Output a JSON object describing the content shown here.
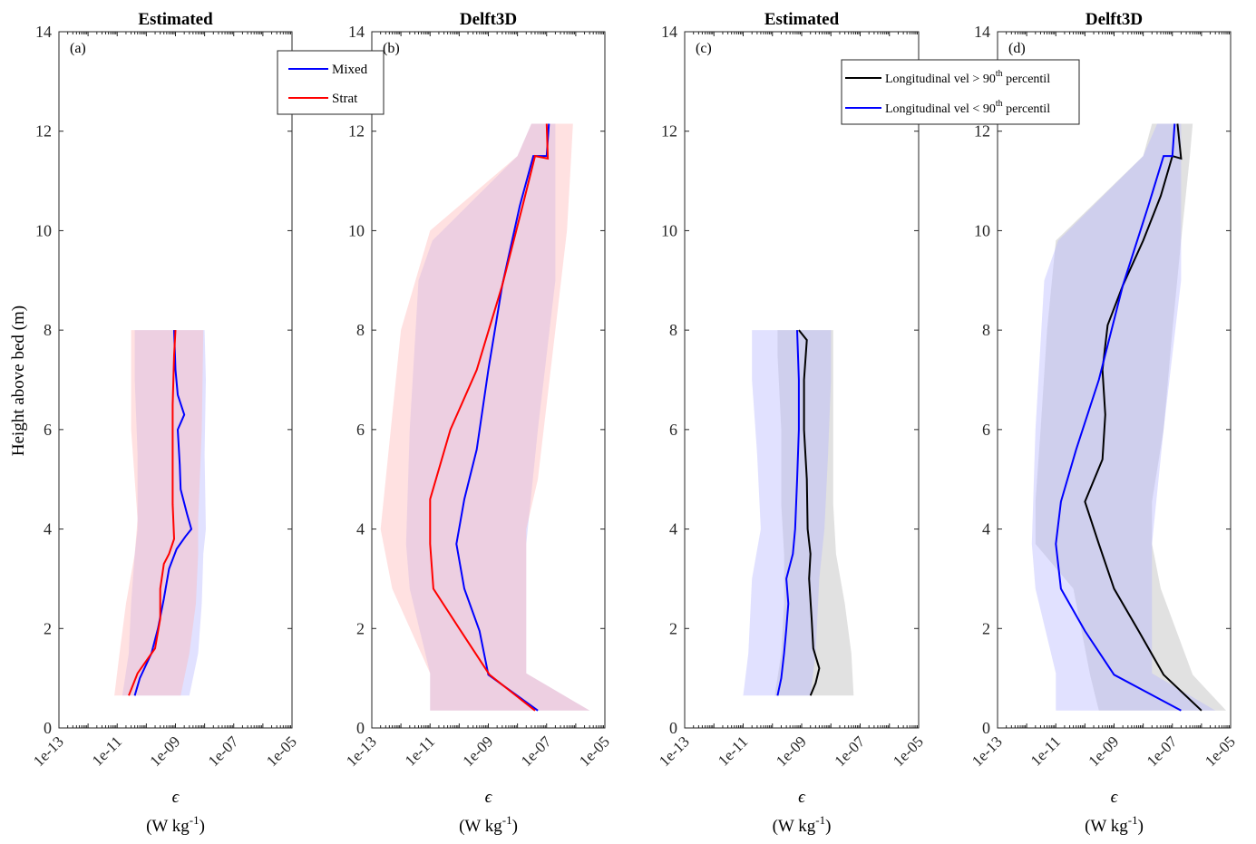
{
  "figure": {
    "ylabel": "Height above bed (m)",
    "xlabel_symbol": "ϵ",
    "xlabel_units": "(W kg",
    "xlabel_units_sup": "-1",
    "xlabel_units_close": ")"
  },
  "axes": {
    "ylim": [
      0,
      14
    ],
    "yticks": [
      0,
      2,
      4,
      6,
      8,
      10,
      12,
      14
    ],
    "xscale": "log",
    "xlim": [
      1e-13,
      1e-05
    ],
    "xticks": [
      "1e-13",
      "1e-11",
      "1e-09",
      "1e-07",
      "1e-05"
    ]
  },
  "legends": {
    "legend_ab": [
      "Mixed",
      "Strat"
    ],
    "legend_cd": [
      {
        "text": "Longitudinal vel > 90",
        "sup": "th",
        "after": " percentil"
      },
      {
        "text": "Longitudinal vel < 90",
        "sup": "th",
        "after": " percentil"
      }
    ]
  },
  "colors": {
    "mixed": "#0000ff",
    "strat": "#ff0000",
    "above": "#000000",
    "below": "#0000ff",
    "mixed_band": "#b4b4ff",
    "strat_band": "#ffb4b4",
    "above_band": "#b4b4b4",
    "below_band": "#b4b4ff"
  },
  "chart_data": [
    {
      "type": "line",
      "panel": "(a)",
      "title": "Estimated",
      "legend": "top-right, outside panel (a)",
      "series": [
        {
          "name": "Mixed",
          "color": "#0000ff",
          "points": [
            [
              4e-11,
              0.65
            ],
            [
              6e-11,
              1.0
            ],
            [
              1.5e-10,
              1.5
            ],
            [
              2.5e-10,
              2.0
            ],
            [
              4e-10,
              2.6
            ],
            [
              6e-10,
              3.2
            ],
            [
              1.1e-09,
              3.6
            ],
            [
              2.2e-09,
              3.85
            ],
            [
              3.5e-09,
              4.0
            ],
            [
              2.5e-09,
              4.3
            ],
            [
              1.5e-09,
              4.8
            ],
            [
              1.4e-09,
              5.3
            ],
            [
              1.2e-09,
              6.0
            ],
            [
              2e-09,
              6.3
            ],
            [
              1.2e-09,
              6.7
            ],
            [
              1e-09,
              7.2
            ],
            [
              9e-10,
              8.0
            ]
          ],
          "band": [
            [
              1.5e-11,
              3e-09,
              0.65
            ],
            [
              2.5e-11,
              6e-09,
              1.5
            ],
            [
              3e-11,
              8e-09,
              2.5
            ],
            [
              4e-11,
              9e-09,
              3.5
            ],
            [
              5e-11,
              1.1e-08,
              4.0
            ],
            [
              5e-11,
              1e-08,
              5.5
            ],
            [
              4e-11,
              1.1e-08,
              7.0
            ],
            [
              4e-11,
              1e-08,
              8.0
            ]
          ]
        },
        {
          "name": "Strat",
          "color": "#ff0000",
          "points": [
            [
              2.5e-11,
              0.65
            ],
            [
              5e-11,
              1.1
            ],
            [
              2e-10,
              1.6
            ],
            [
              3e-10,
              2.2
            ],
            [
              3e-10,
              2.8
            ],
            [
              4e-10,
              3.3
            ],
            [
              6e-10,
              3.5
            ],
            [
              9e-10,
              3.8
            ],
            [
              8e-10,
              4.5
            ],
            [
              8e-10,
              5.5
            ],
            [
              8e-10,
              6.5
            ],
            [
              9e-10,
              7.5
            ],
            [
              1e-09,
              8.0
            ]
          ],
          "band": [
            [
              8e-12,
              1.5e-09,
              0.65
            ],
            [
              1.2e-11,
              3e-09,
              1.5
            ],
            [
              2e-11,
              5e-09,
              2.5
            ],
            [
              4e-11,
              6e-09,
              3.5
            ],
            [
              5e-11,
              6e-09,
              4.2
            ],
            [
              3e-11,
              8e-09,
              6.0
            ],
            [
              3e-11,
              9e-09,
              8.0
            ]
          ]
        }
      ]
    },
    {
      "type": "line",
      "panel": "(b)",
      "title": "Delft3D",
      "series": [
        {
          "name": "Mixed",
          "color": "#0000ff",
          "points": [
            [
              5e-08,
              0.35
            ],
            [
              1e-09,
              1.07
            ],
            [
              5e-10,
              1.95
            ],
            [
              1.5e-10,
              2.8
            ],
            [
              8e-11,
              3.7
            ],
            [
              1.5e-10,
              4.6
            ],
            [
              4e-10,
              5.6
            ],
            [
              1e-09,
              7.2
            ],
            [
              3e-09,
              8.9
            ],
            [
              1.2e-08,
              10.5
            ],
            [
              3.5e-08,
              11.5
            ],
            [
              1e-07,
              11.5
            ],
            [
              1.2e-07,
              12.15
            ]
          ],
          "band": [
            [
              1e-11,
              3e-06,
              0.35
            ],
            [
              1e-11,
              2e-08,
              1.1
            ],
            [
              2e-12,
              2e-08,
              2.8
            ],
            [
              1.5e-12,
              2e-08,
              3.7
            ],
            [
              2e-12,
              5e-08,
              6.0
            ],
            [
              4e-12,
              2e-07,
              9.0
            ],
            [
              1.2e-11,
              2e-07,
              9.8
            ],
            [
              1e-08,
              2e-07,
              11.5
            ],
            [
              3e-08,
              2e-07,
              12.15
            ]
          ]
        },
        {
          "name": "Strat",
          "color": "#ff0000",
          "points": [
            [
              4e-08,
              0.35
            ],
            [
              1.1e-09,
              1.07
            ],
            [
              1e-10,
              2.0
            ],
            [
              1.3e-11,
              2.8
            ],
            [
              1e-11,
              3.7
            ],
            [
              1e-11,
              4.6
            ],
            [
              5e-11,
              6.0
            ],
            [
              4e-10,
              7.2
            ],
            [
              3e-09,
              8.9
            ],
            [
              1.5e-08,
              10.5
            ],
            [
              4e-08,
              11.5
            ],
            [
              1.1e-07,
              11.45
            ],
            [
              1e-07,
              12.15
            ]
          ],
          "band": [
            [
              1e-11,
              3e-06,
              0.35
            ],
            [
              1e-11,
              2e-08,
              1.1
            ],
            [
              5e-13,
              2e-08,
              2.8
            ],
            [
              2e-13,
              2e-08,
              4.0
            ],
            [
              3e-13,
              5e-08,
              5.0
            ],
            [
              1e-12,
              2e-07,
              8.0
            ],
            [
              1e-11,
              5e-07,
              10.0
            ],
            [
              1e-08,
              7e-07,
              11.5
            ],
            [
              3e-08,
              8e-07,
              12.15
            ]
          ]
        }
      ]
    },
    {
      "type": "line",
      "panel": "(c)",
      "title": "Estimated",
      "legend": "top, spanning panels (c)-(d)",
      "series": [
        {
          "name": "Longitudinal vel > 90th percentil",
          "color": "#000000",
          "points": [
            [
              2e-09,
              0.65
            ],
            [
              3e-09,
              0.9
            ],
            [
              4e-09,
              1.2
            ],
            [
              2.5e-09,
              1.6
            ],
            [
              2.2e-09,
              2.2
            ],
            [
              1.8e-09,
              3.0
            ],
            [
              2e-09,
              3.5
            ],
            [
              1.6e-09,
              4.0
            ],
            [
              1.5e-09,
              5.0
            ],
            [
              1.2e-09,
              6.0
            ],
            [
              1.2e-09,
              7.0
            ],
            [
              1.5e-09,
              7.8
            ],
            [
              8e-10,
              8.0
            ]
          ],
          "band": [
            [
              1.2e-10,
              6e-08,
              0.65
            ],
            [
              2e-10,
              5e-08,
              1.5
            ],
            [
              2.5e-10,
              3e-08,
              2.5
            ],
            [
              2.5e-10,
              1.5e-08,
              3.5
            ],
            [
              2e-10,
              1.2e-08,
              4.5
            ],
            [
              2e-10,
              1.2e-08,
              6.0
            ],
            [
              1.5e-10,
              1.2e-08,
              7.5
            ],
            [
              1.5e-10,
              1.2e-08,
              8.0
            ]
          ]
        },
        {
          "name": "Longitudinal vel < 90th percentil",
          "color": "#0000ff",
          "points": [
            [
              1.5e-10,
              0.65
            ],
            [
              2e-10,
              1.0
            ],
            [
              2.5e-10,
              1.5
            ],
            [
              3e-10,
              2.0
            ],
            [
              3.5e-10,
              2.5
            ],
            [
              3e-10,
              3.0
            ],
            [
              5e-10,
              3.5
            ],
            [
              6e-10,
              4.0
            ],
            [
              7e-10,
              5.0
            ],
            [
              8e-10,
              6.0
            ],
            [
              8e-10,
              7.0
            ],
            [
              7e-10,
              8.0
            ]
          ],
          "band": [
            [
              1e-11,
              2e-09,
              0.65
            ],
            [
              1.5e-11,
              3e-09,
              1.5
            ],
            [
              2e-11,
              4e-09,
              3.0
            ],
            [
              4e-11,
              6e-09,
              4.0
            ],
            [
              3e-11,
              8e-09,
              5.5
            ],
            [
              2e-11,
              1e-08,
              7.0
            ],
            [
              2e-11,
              1e-08,
              8.0
            ]
          ]
        }
      ]
    },
    {
      "type": "line",
      "panel": "(d)",
      "title": "Delft3D",
      "series": [
        {
          "name": "Longitudinal vel > 90th percentil",
          "color": "#000000",
          "points": [
            [
              1e-06,
              0.35
            ],
            [
              5e-08,
              1.07
            ],
            [
              7e-09,
              1.95
            ],
            [
              1e-09,
              2.8
            ],
            [
              3e-10,
              3.7
            ],
            [
              1e-10,
              4.55
            ],
            [
              4e-10,
              5.4
            ],
            [
              5e-10,
              6.3
            ],
            [
              4e-10,
              7.2
            ],
            [
              6e-10,
              8.1
            ],
            [
              2e-09,
              8.9
            ],
            [
              1e-08,
              9.8
            ],
            [
              4e-08,
              10.7
            ],
            [
              1e-07,
              11.5
            ],
            [
              2e-07,
              11.45
            ],
            [
              1.5e-07,
              12.15
            ]
          ],
          "band": [
            [
              3e-10,
              7e-06,
              0.35
            ],
            [
              1.5e-10,
              5e-07,
              1.07
            ],
            [
              4e-11,
              4e-08,
              2.8
            ],
            [
              2e-12,
              2e-08,
              3.7
            ],
            [
              2e-12,
              2e-08,
              4.55
            ],
            [
              3e-12,
              5e-08,
              6.0
            ],
            [
              5e-12,
              1e-07,
              8.0
            ],
            [
              1e-11,
              2e-07,
              9.8
            ],
            [
              1e-08,
              4e-07,
              11.5
            ],
            [
              2e-08,
              5e-07,
              12.15
            ]
          ]
        },
        {
          "name": "Longitudinal vel < 90th percentil",
          "color": "#0000ff",
          "points": [
            [
              2e-07,
              0.35
            ],
            [
              1e-09,
              1.07
            ],
            [
              1e-10,
              1.95
            ],
            [
              1.5e-11,
              2.8
            ],
            [
              1e-11,
              3.7
            ],
            [
              1.5e-11,
              4.55
            ],
            [
              5e-11,
              5.6
            ],
            [
              3e-10,
              7.0
            ],
            [
              2e-09,
              8.9
            ],
            [
              1.5e-08,
              10.5
            ],
            [
              5e-08,
              11.5
            ],
            [
              1e-07,
              11.5
            ],
            [
              1.2e-07,
              12.15
            ]
          ],
          "band": [
            [
              1e-11,
              3e-06,
              0.35
            ],
            [
              1e-11,
              2e-08,
              1.1
            ],
            [
              2e-12,
              2e-08,
              2.8
            ],
            [
              1.5e-12,
              2e-08,
              3.7
            ],
            [
              2e-12,
              5e-08,
              6.0
            ],
            [
              4e-12,
              2e-07,
              9.0
            ],
            [
              1.2e-11,
              2e-07,
              9.8
            ],
            [
              1e-08,
              2e-07,
              11.5
            ],
            [
              3e-08,
              2e-07,
              12.15
            ]
          ]
        }
      ]
    }
  ]
}
